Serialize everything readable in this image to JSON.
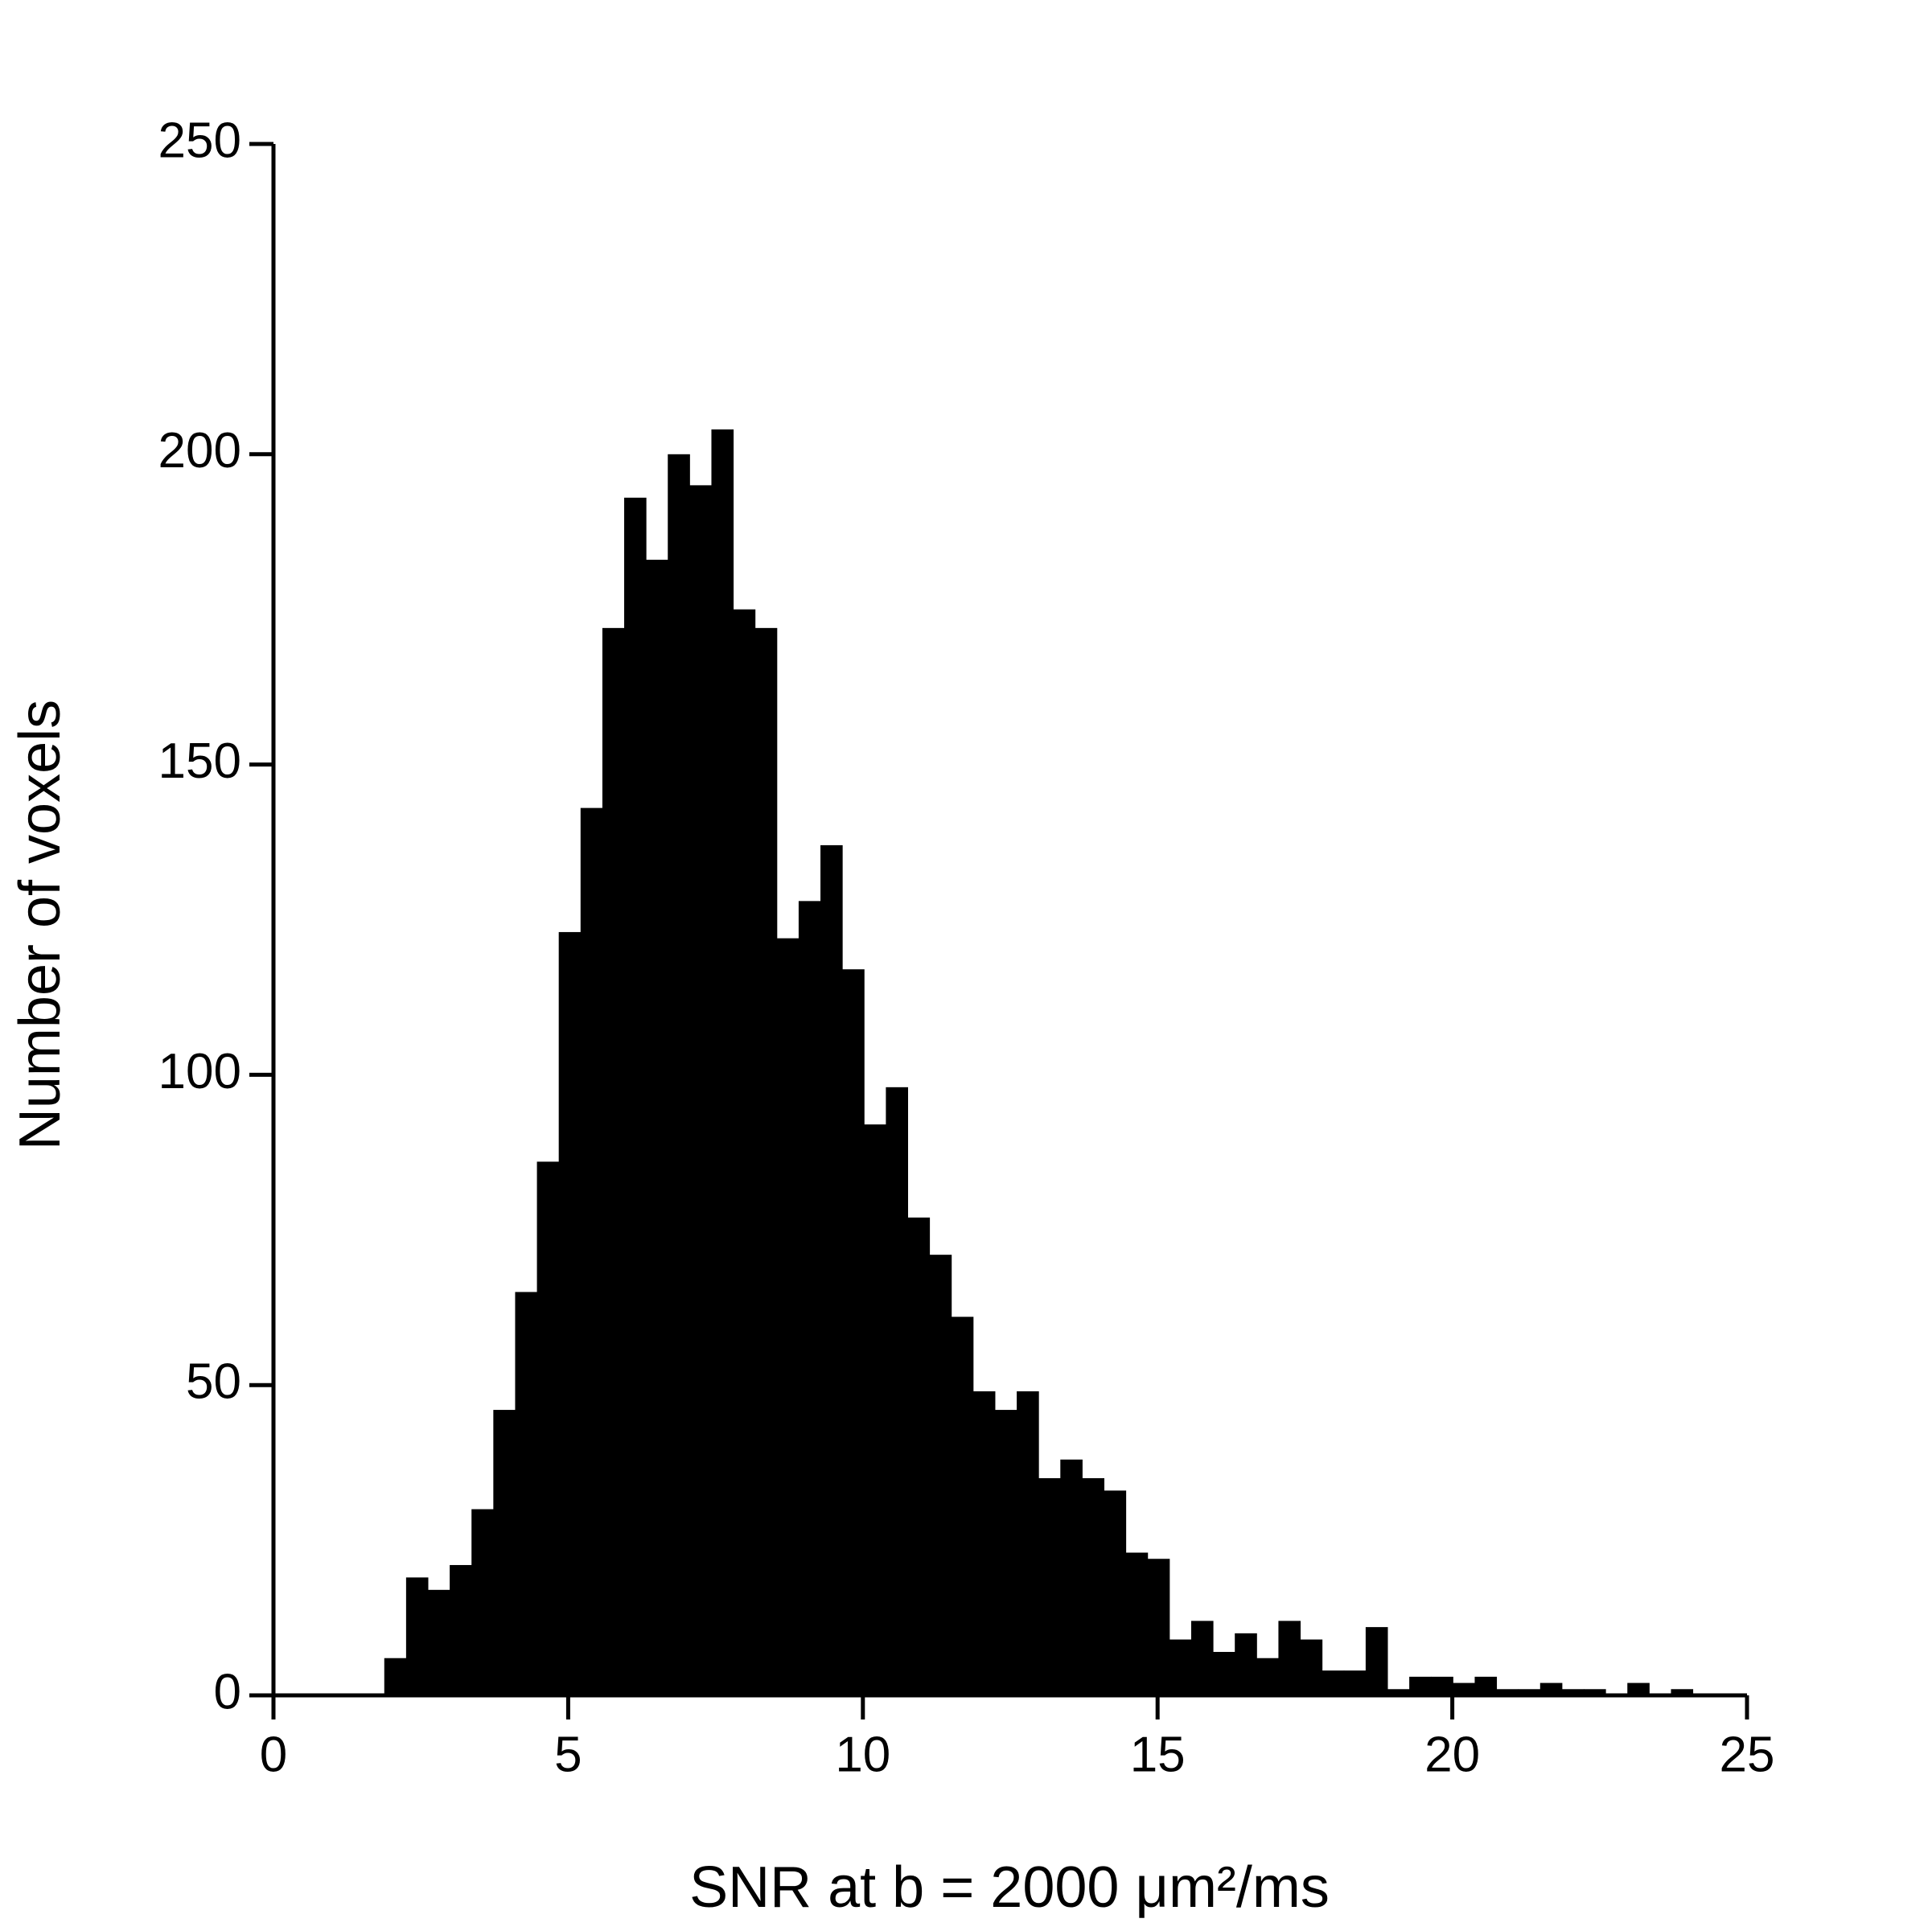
{
  "chart_data": {
    "type": "histogram",
    "xlabel": "SNR at b = 2000 μm²/ms",
    "ylabel": "Number of voxels",
    "color": "#000000",
    "bins": [
      1.88,
      2.25,
      2.62,
      2.99,
      3.36,
      3.73,
      4.1,
      4.47,
      4.84,
      5.21,
      5.58,
      5.95,
      6.32,
      6.69,
      7.06,
      7.43,
      7.8,
      8.17,
      8.54,
      8.91,
      9.28,
      9.65,
      10.02,
      10.39,
      10.76,
      11.13,
      11.5,
      11.87,
      12.24,
      12.61,
      12.98,
      13.35,
      13.72,
      14.09,
      14.46,
      14.83,
      15.2,
      15.57,
      15.94,
      16.31,
      16.68,
      17.05,
      17.42,
      17.79,
      18.16,
      18.53,
      18.9,
      19.27,
      19.64,
      20.01,
      20.38,
      20.75,
      21.12,
      21.49,
      21.86,
      22.23,
      22.6,
      22.97,
      23.34,
      23.71,
      24.08
    ],
    "values": [
      6,
      19,
      17,
      21,
      30,
      46,
      65,
      86,
      123,
      143,
      172,
      193,
      183,
      200,
      195,
      204,
      175,
      172,
      122,
      128,
      137,
      117,
      92,
      98,
      77,
      71,
      61,
      49,
      46,
      49,
      35,
      38,
      35,
      33,
      23,
      22,
      9,
      12,
      7,
      10,
      6,
      12,
      9,
      4,
      4,
      11,
      1,
      3,
      3,
      2,
      3,
      1,
      1,
      2,
      1,
      1,
      0,
      2,
      0,
      1
    ],
    "xlim": [
      0,
      25
    ],
    "xticks": [
      0,
      5,
      10,
      15,
      20,
      25
    ],
    "ylim": [
      0,
      250
    ],
    "yticks": [
      0,
      50,
      100,
      150,
      200,
      250
    ]
  }
}
